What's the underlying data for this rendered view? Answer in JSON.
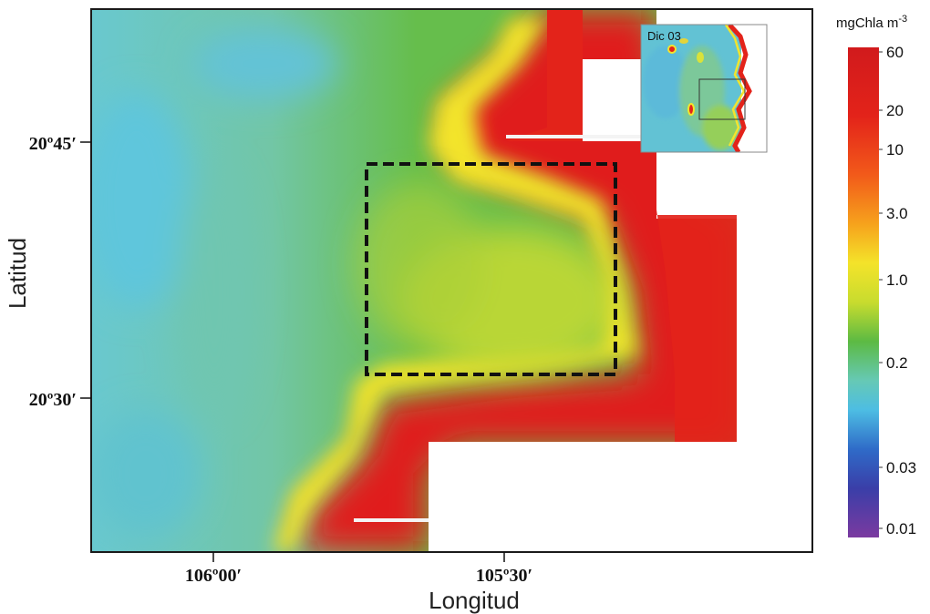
{
  "axes": {
    "x_label": "Longitud",
    "y_label": "Latitud",
    "x_ticks": [
      "106º00′",
      "105º30′"
    ],
    "y_ticks": [
      "20º45′",
      "20º30′"
    ]
  },
  "inset": {
    "label": "Dic 03"
  },
  "colorbar": {
    "title": "mgChla m",
    "title_superscript": "-3",
    "ticks": [
      "60",
      "20",
      "10",
      "3.0",
      "1.0",
      "0.2",
      "0.03",
      "0.01"
    ],
    "scale": "log"
  },
  "colors": {
    "land": "#ffffff",
    "high": "#e01a1c",
    "mid": "#f3e82a",
    "low_mid": "#5cba43",
    "low": "#5fc7d6",
    "very_low": "#7a3c9c",
    "frame": "#1a1a1a"
  }
}
